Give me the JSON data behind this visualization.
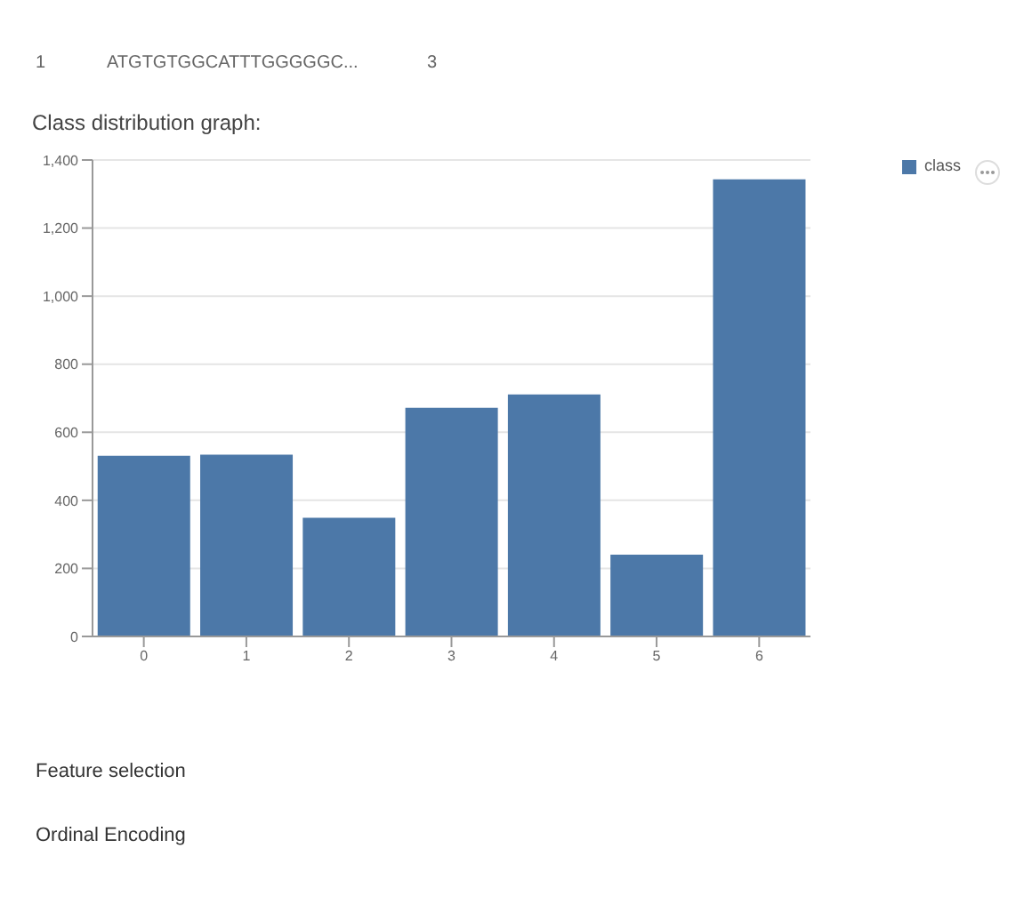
{
  "chart_data": {
    "type": "bar",
    "title": "Class distribution graph:",
    "categories": [
      "0",
      "1",
      "2",
      "3",
      "4",
      "5",
      "6"
    ],
    "series": [
      {
        "name": "class",
        "color": "#4c78a8",
        "values": [
          531,
          534,
          349,
          672,
          711,
          240,
          1343
        ]
      }
    ],
    "ylim": [
      0,
      1400
    ],
    "yticks": [
      0,
      {
        "value": 200,
        "label": "200"
      },
      {
        "value": 400,
        "label": "400"
      },
      {
        "value": 600,
        "label": "600"
      },
      {
        "value": 800,
        "label": "800"
      },
      {
        "value": 1000,
        "label": "1,000"
      },
      {
        "value": 1200,
        "label": "1,200"
      },
      {
        "value": 1400,
        "label": "1,400"
      }
    ],
    "grid": "y",
    "legend": "top right",
    "annotations": [
      "1",
      "ATGTGTGGCATTTGGGGGC...",
      "3",
      "Feature selection",
      "Ordinal Encoding"
    ]
  }
}
